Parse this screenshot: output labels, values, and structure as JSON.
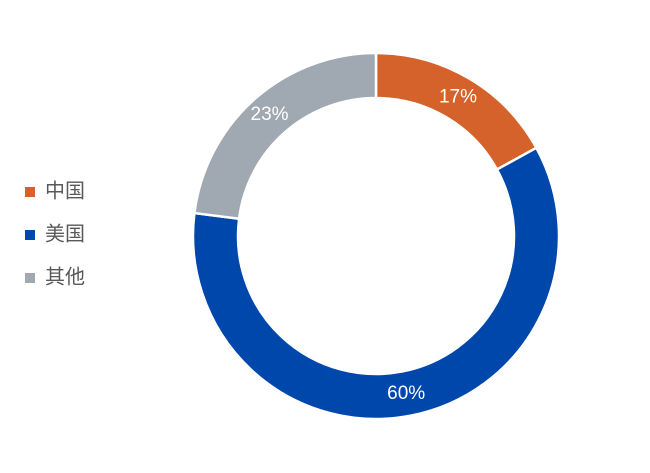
{
  "chart_data": {
    "type": "donut",
    "categories": [
      "中国",
      "美国",
      "其他"
    ],
    "values": [
      17,
      60,
      23
    ],
    "value_labels": [
      "17%",
      "60%",
      "23%"
    ],
    "colors": [
      "#d4622a",
      "#0047ab",
      "#a0a8b2"
    ],
    "legend": "left"
  }
}
